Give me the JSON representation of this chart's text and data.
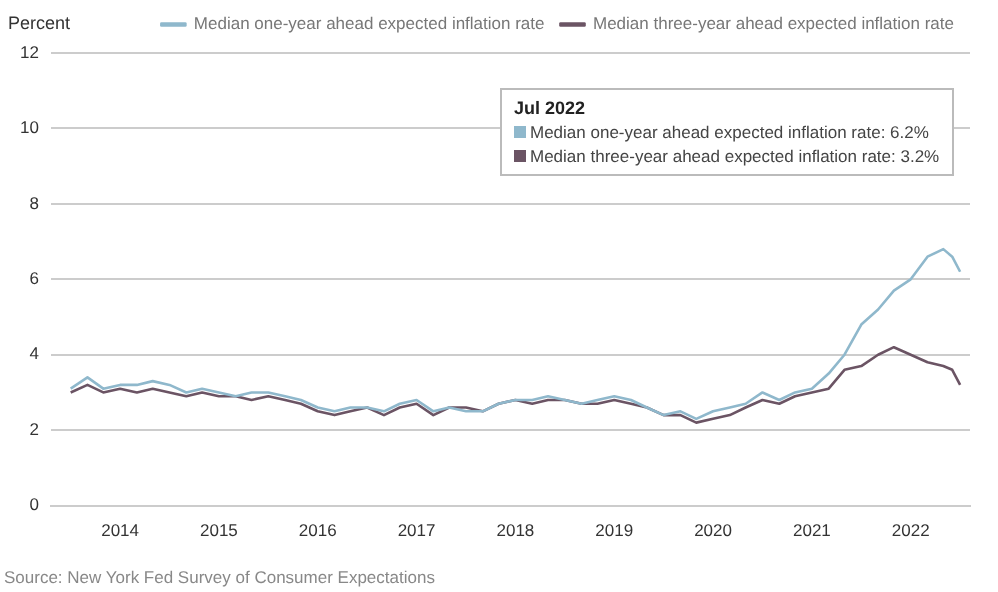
{
  "chart_data": {
    "type": "line",
    "ylabel": "Percent",
    "x": [
      2013.5,
      2013.67,
      2013.83,
      2014,
      2014.17,
      2014.33,
      2014.5,
      2014.67,
      2014.83,
      2015,
      2015.17,
      2015.33,
      2015.5,
      2015.67,
      2015.83,
      2016,
      2016.17,
      2016.33,
      2016.5,
      2016.67,
      2016.83,
      2017,
      2017.17,
      2017.33,
      2017.5,
      2017.67,
      2017.83,
      2018,
      2018.17,
      2018.33,
      2018.5,
      2018.67,
      2018.83,
      2019,
      2019.17,
      2019.33,
      2019.5,
      2019.67,
      2019.83,
      2020,
      2020.17,
      2020.33,
      2020.5,
      2020.67,
      2020.83,
      2021,
      2021.17,
      2021.33,
      2021.5,
      2021.67,
      2021.83,
      2022,
      2022.17,
      2022.33,
      2022.42,
      2022.5
    ],
    "series": [
      {
        "name": "Median one-year ahead expected inflation rate",
        "color": "#8fb8cc",
        "values": [
          3.1,
          3.4,
          3.1,
          3.2,
          3.2,
          3.3,
          3.2,
          3.0,
          3.1,
          3.0,
          2.9,
          3.0,
          3.0,
          2.9,
          2.8,
          2.6,
          2.5,
          2.6,
          2.6,
          2.5,
          2.7,
          2.8,
          2.5,
          2.6,
          2.5,
          2.5,
          2.7,
          2.8,
          2.8,
          2.9,
          2.8,
          2.7,
          2.8,
          2.9,
          2.8,
          2.6,
          2.4,
          2.5,
          2.3,
          2.5,
          2.6,
          2.7,
          3.0,
          2.8,
          3.0,
          3.1,
          3.5,
          4.0,
          4.8,
          5.2,
          5.7,
          6.0,
          6.6,
          6.8,
          6.6,
          6.2
        ]
      },
      {
        "name": "Median three-year ahead expected inflation rate",
        "color": "#6b5464",
        "values": [
          3.0,
          3.2,
          3.0,
          3.1,
          3.0,
          3.1,
          3.0,
          2.9,
          3.0,
          2.9,
          2.9,
          2.8,
          2.9,
          2.8,
          2.7,
          2.5,
          2.4,
          2.5,
          2.6,
          2.4,
          2.6,
          2.7,
          2.4,
          2.6,
          2.6,
          2.5,
          2.7,
          2.8,
          2.7,
          2.8,
          2.8,
          2.7,
          2.7,
          2.8,
          2.7,
          2.6,
          2.4,
          2.4,
          2.2,
          2.3,
          2.4,
          2.6,
          2.8,
          2.7,
          2.9,
          3.0,
          3.1,
          3.6,
          3.7,
          4.0,
          4.2,
          4.0,
          3.8,
          3.7,
          3.6,
          3.2
        ]
      }
    ],
    "xlim": [
      2013.3,
      2022.6
    ],
    "xticks": [
      2014,
      2015,
      2016,
      2017,
      2018,
      2019,
      2020,
      2021,
      2022
    ],
    "ylim": [
      0,
      12
    ],
    "yticks": [
      0,
      2,
      4,
      6,
      8,
      10,
      12
    ],
    "grid": "y",
    "legend": "top",
    "marker": "none",
    "line_style": "solid",
    "annotations": [
      "Jul 2022",
      "Median one-year ahead expected inflation rate: 6.2%",
      "Median three-year ahead expected inflation rate: 3.2%",
      "Source: New York Fed Survey of Consumer Expectations"
    ]
  }
}
